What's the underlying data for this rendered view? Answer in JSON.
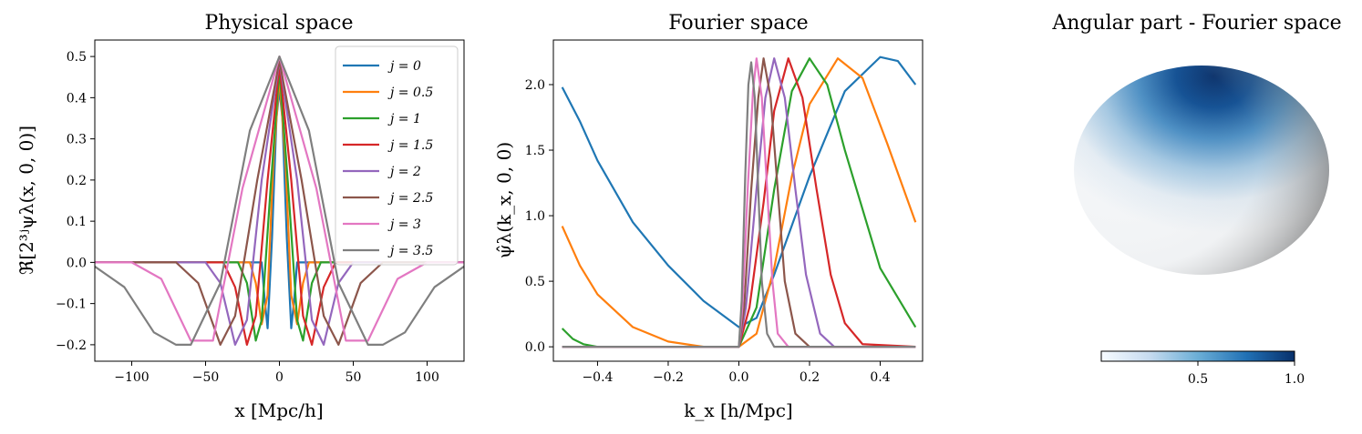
{
  "chart_data": [
    {
      "type": "line",
      "title": "Physical space",
      "xlabel": "x [Mpc/h]",
      "ylabel": "ℜ[2³ʲψλ(x, 0, 0)]",
      "xlim": [
        -125,
        125
      ],
      "ylim": [
        -0.24,
        0.54
      ],
      "xticks": [
        -100,
        -50,
        0,
        50,
        100
      ],
      "xtick_labels": [
        "−100",
        "−50",
        "0",
        "50",
        "100"
      ],
      "yticks": [
        -0.2,
        -0.1,
        0.0,
        0.1,
        0.2,
        0.3,
        0.4,
        0.5
      ],
      "ytick_labels": [
        "−0.2",
        "−0.1",
        "0.0",
        "0.1",
        "0.2",
        "0.3",
        "0.4",
        "0.5"
      ],
      "legend_position": "top-right",
      "series": [
        {
          "name": "j = 0",
          "color": "#1f77b4",
          "x": [
            -125,
            -15,
            -12,
            -10,
            -8,
            -5,
            -2,
            0,
            2,
            5,
            8,
            10,
            12,
            15,
            125
          ],
          "y": [
            0,
            0,
            0,
            -0.09,
            -0.16,
            0.06,
            0.35,
            0.42,
            0.35,
            0.06,
            -0.16,
            -0.09,
            0,
            0,
            0
          ]
        },
        {
          "name": "j = 0.5",
          "color": "#ff7f0e",
          "x": [
            -125,
            -20,
            -16,
            -12,
            -8,
            -4,
            0,
            4,
            8,
            12,
            16,
            20,
            125
          ],
          "y": [
            0,
            0,
            -0.05,
            -0.15,
            -0.08,
            0.25,
            0.45,
            0.25,
            -0.08,
            -0.15,
            -0.05,
            0,
            0
          ]
        },
        {
          "name": "j = 1",
          "color": "#2ca02c",
          "x": [
            -125,
            -28,
            -22,
            -16,
            -12,
            -6,
            0,
            6,
            12,
            16,
            22,
            28,
            125
          ],
          "y": [
            0,
            0,
            -0.05,
            -0.19,
            -0.14,
            0.18,
            0.47,
            0.18,
            -0.14,
            -0.19,
            -0.05,
            0,
            0
          ]
        },
        {
          "name": "j = 1.5",
          "color": "#d62728",
          "x": [
            -125,
            -38,
            -30,
            -22,
            -16,
            -8,
            0,
            8,
            16,
            22,
            30,
            38,
            125
          ],
          "y": [
            0,
            0,
            -0.06,
            -0.2,
            -0.13,
            0.2,
            0.48,
            0.2,
            -0.13,
            -0.2,
            -0.06,
            0,
            0
          ]
        },
        {
          "name": "j = 2",
          "color": "#9467bd",
          "x": [
            -125,
            -50,
            -40,
            -30,
            -22,
            -12,
            0,
            12,
            22,
            30,
            40,
            50,
            125
          ],
          "y": [
            0,
            0,
            -0.05,
            -0.2,
            -0.14,
            0.2,
            0.49,
            0.2,
            -0.14,
            -0.2,
            -0.05,
            0,
            0
          ]
        },
        {
          "name": "j = 2.5",
          "color": "#8c564b",
          "x": [
            -125,
            -70,
            -55,
            -40,
            -30,
            -15,
            0,
            15,
            30,
            40,
            55,
            70,
            125
          ],
          "y": [
            0,
            0,
            -0.05,
            -0.2,
            -0.13,
            0.2,
            0.49,
            0.2,
            -0.13,
            -0.2,
            -0.05,
            0,
            0
          ]
        },
        {
          "name": "j = 3",
          "color": "#e377c2",
          "x": [
            -125,
            -100,
            -80,
            -60,
            -45,
            -25,
            0,
            25,
            45,
            60,
            80,
            100,
            125
          ],
          "y": [
            0,
            0,
            -0.04,
            -0.19,
            -0.19,
            0.18,
            0.5,
            0.18,
            -0.19,
            -0.19,
            -0.04,
            0,
            0
          ]
        },
        {
          "name": "j = 3.5",
          "color": "#7f7f7f",
          "x": [
            -125,
            -105,
            -85,
            -70,
            -60,
            -40,
            -20,
            0,
            20,
            40,
            60,
            70,
            85,
            105,
            125
          ],
          "y": [
            -0.01,
            -0.06,
            -0.17,
            -0.2,
            -0.2,
            -0.05,
            0.32,
            0.5,
            0.32,
            -0.05,
            -0.2,
            -0.2,
            -0.17,
            -0.06,
            -0.01
          ]
        }
      ]
    },
    {
      "type": "line",
      "title": "Fourier space",
      "xlabel": "k_x [h/Mpc]",
      "ylabel": "ψ̂λ(k_x, 0, 0)",
      "xlim": [
        -0.525,
        0.52
      ],
      "ylim": [
        -0.11,
        2.34
      ],
      "xticks": [
        -0.4,
        -0.2,
        0.0,
        0.2,
        0.4
      ],
      "xtick_labels": [
        "−0.4",
        "−0.2",
        "0.0",
        "0.2",
        "0.4"
      ],
      "yticks": [
        0.0,
        0.5,
        1.0,
        1.5,
        2.0
      ],
      "ytick_labels": [
        "0.0",
        "0.5",
        "1.0",
        "1.5",
        "2.0"
      ],
      "series": [
        {
          "name": "j = 0",
          "color": "#1f77b4",
          "x": [
            -0.5,
            -0.45,
            -0.4,
            -0.3,
            -0.2,
            -0.1,
            0.0,
            0.05,
            0.1,
            0.2,
            0.3,
            0.4,
            0.45,
            0.5
          ],
          "y": [
            1.98,
            1.72,
            1.42,
            0.95,
            0.62,
            0.35,
            0.15,
            0.22,
            0.55,
            1.3,
            1.95,
            2.21,
            2.18,
            2.0
          ]
        },
        {
          "name": "j = 0.5",
          "color": "#ff7f0e",
          "x": [
            -0.5,
            -0.45,
            -0.4,
            -0.3,
            -0.2,
            -0.1,
            0.0,
            0.05,
            0.1,
            0.15,
            0.2,
            0.28,
            0.35,
            0.42,
            0.5
          ],
          "y": [
            0.92,
            0.62,
            0.4,
            0.15,
            0.04,
            0.0,
            0.0,
            0.1,
            0.6,
            1.3,
            1.85,
            2.2,
            2.05,
            1.55,
            0.95
          ]
        },
        {
          "name": "j = 1",
          "color": "#2ca02c",
          "x": [
            -0.5,
            -0.47,
            -0.44,
            -0.4,
            -0.3,
            0.0,
            0.05,
            0.1,
            0.15,
            0.2,
            0.25,
            0.3,
            0.4,
            0.5
          ],
          "y": [
            0.14,
            0.06,
            0.02,
            0.0,
            0.0,
            0.0,
            0.3,
            1.2,
            1.95,
            2.2,
            2.0,
            1.5,
            0.6,
            0.15
          ]
        },
        {
          "name": "j = 1.5",
          "color": "#d62728",
          "x": [
            -0.5,
            0.0,
            0.03,
            0.07,
            0.1,
            0.14,
            0.18,
            0.22,
            0.26,
            0.3,
            0.35,
            0.5
          ],
          "y": [
            0,
            0,
            0.3,
            1.1,
            1.8,
            2.2,
            1.9,
            1.2,
            0.55,
            0.18,
            0.02,
            0
          ]
        },
        {
          "name": "j = 2",
          "color": "#9467bd",
          "x": [
            -0.5,
            0.0,
            0.02,
            0.05,
            0.075,
            0.1,
            0.13,
            0.16,
            0.19,
            0.23,
            0.27,
            0.5
          ],
          "y": [
            0,
            0,
            0.3,
            1.2,
            1.9,
            2.2,
            1.9,
            1.2,
            0.55,
            0.1,
            0.0,
            0
          ]
        },
        {
          "name": "j = 2.5",
          "color": "#8c564b",
          "x": [
            -0.5,
            0.0,
            0.015,
            0.035,
            0.055,
            0.07,
            0.09,
            0.11,
            0.13,
            0.16,
            0.2,
            0.5
          ],
          "y": [
            0,
            0,
            0.3,
            1.2,
            1.9,
            2.2,
            1.9,
            1.2,
            0.5,
            0.1,
            0.0,
            0
          ]
        },
        {
          "name": "j = 3",
          "color": "#e377c2",
          "x": [
            -0.5,
            0.0,
            0.01,
            0.025,
            0.04,
            0.05,
            0.065,
            0.08,
            0.095,
            0.11,
            0.14,
            0.5
          ],
          "y": [
            0,
            0,
            0.3,
            1.2,
            1.95,
            2.2,
            1.9,
            1.2,
            0.5,
            0.1,
            0.0,
            0
          ]
        },
        {
          "name": "j = 3.5",
          "color": "#7f7f7f",
          "x": [
            -0.5,
            0.0,
            0.008,
            0.018,
            0.027,
            0.035,
            0.045,
            0.055,
            0.065,
            0.08,
            0.1,
            0.5
          ],
          "y": [
            0,
            0,
            0.35,
            1.3,
            2.0,
            2.17,
            1.9,
            1.2,
            0.5,
            0.1,
            0.0,
            0
          ]
        }
      ]
    },
    {
      "type": "heatmap",
      "title": "Angular part - Fourier space",
      "colormap": [
        "#f7fbff",
        "#c6dbef",
        "#6baed6",
        "#2171b5",
        "#08306b"
      ],
      "colorbar_ticks": [
        0.5,
        1.0
      ],
      "colorbar_tick_labels": [
        "0.5",
        "1.0"
      ],
      "colorbar_range": [
        0.0,
        1.0
      ]
    }
  ]
}
